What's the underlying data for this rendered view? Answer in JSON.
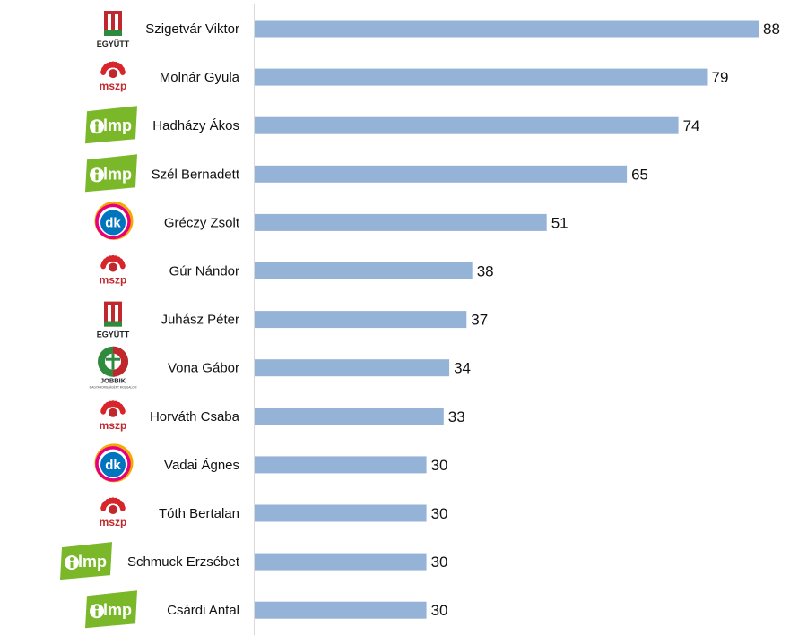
{
  "chart_data": {
    "type": "bar",
    "orientation": "horizontal",
    "categories": [
      "Szigetvár Viktor",
      "Molnár Gyula",
      "Hadházy Ákos",
      "Szél Bernadett",
      "Gréczy Zsolt",
      "Gúr Nándor",
      "Juhász Péter",
      "Vona Gábor",
      "Horváth Csaba",
      "Vadai Ágnes",
      "Tóth Bertalan",
      "Schmuck Erzsébet",
      "Csárdi Antal"
    ],
    "values": [
      88,
      79,
      74,
      65,
      51,
      38,
      37,
      34,
      33,
      30,
      30,
      30,
      30
    ],
    "parties": [
      "egyutt",
      "mszp",
      "lmp",
      "lmp",
      "dk",
      "mszp",
      "egyutt",
      "jobbik",
      "mszp",
      "dk",
      "mszp",
      "lmp",
      "lmp"
    ],
    "xlim": [
      0,
      88
    ],
    "grid": false,
    "legend": "none",
    "colors": {
      "bar": "#95b3d7",
      "axis": "#d9d9d9",
      "text": "#111111"
    }
  },
  "logos": {
    "egyutt": {
      "text": "EGYÜTT",
      "colors": [
        "#c0282d",
        "#ffffff",
        "#2e8b3d"
      ]
    },
    "mszp": {
      "text": "mszp",
      "colors": [
        "#d7262b",
        "#c0282d"
      ]
    },
    "lmp": {
      "text": "lmp",
      "colors": [
        "#7ab829",
        "#ffffff"
      ]
    },
    "dk": {
      "text": "dk",
      "colors": [
        "#0074bc",
        "#e6007e",
        "#f5a800"
      ]
    },
    "jobbik": {
      "text": "JOBBIK",
      "subtext": "MAGYARORSZÁGÉRT MOZGALOM",
      "colors": [
        "#2e8b3d",
        "#c0282d",
        "#ffffff"
      ]
    }
  }
}
